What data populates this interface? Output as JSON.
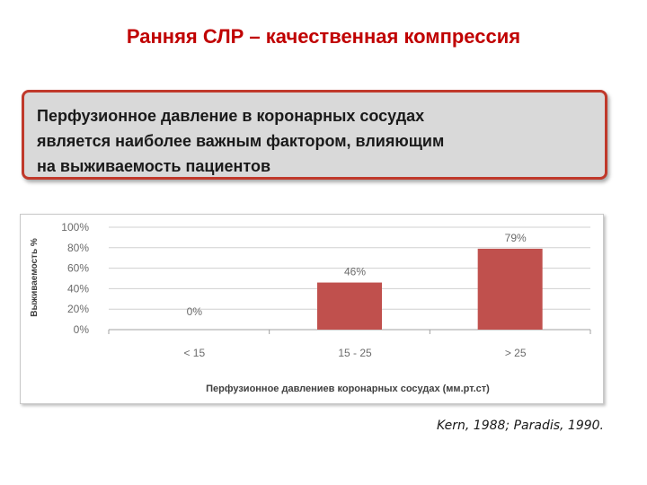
{
  "slide": {
    "title": "Ранняя СЛР – качественная компрессия",
    "callout_lines": [
      "Перфузионное давление в коронарных сосудах",
      "является наиболее важным фактором, влияющим",
      "на выживаемость пациентов"
    ],
    "citation": "Kern, 1988; Paradis, 1990."
  },
  "colors": {
    "bar": "#c0504d",
    "title": "#c00000",
    "callout_border": "#c0392b"
  },
  "chart_data": {
    "type": "bar",
    "categories": [
      "< 15",
      "15 - 25",
      "> 25"
    ],
    "values": [
      0,
      46,
      79
    ],
    "data_labels": [
      "0%",
      "46%",
      "79%"
    ],
    "title": "",
    "xlabel": "Перфузионное давлениев коронарных сосудах (мм.рт.ст)",
    "ylabel": "Выживаемость %",
    "ylim": [
      0,
      100
    ],
    "yticks": [
      0,
      20,
      40,
      60,
      80,
      100
    ],
    "ytick_labels": [
      "0%",
      "20%",
      "40%",
      "60%",
      "80%",
      "100%"
    ],
    "grid": true,
    "legend": "none"
  }
}
